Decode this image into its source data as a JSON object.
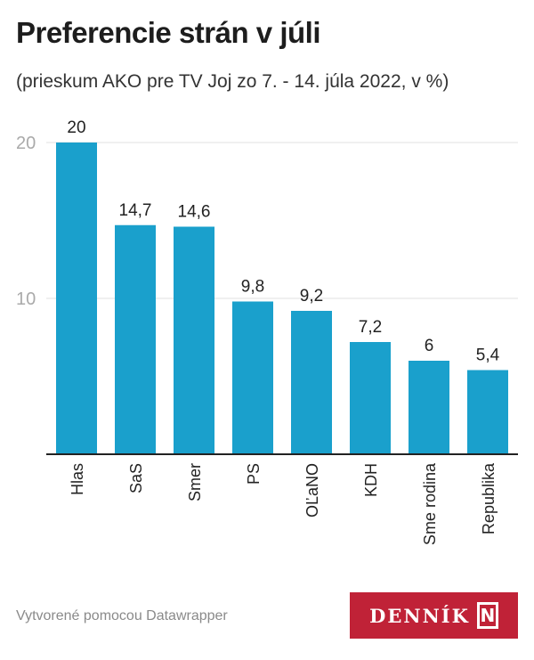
{
  "header": {
    "title": "Preferencie strán v júli",
    "subtitle": "(prieskum AKO pre TV Joj zo 7. - 14. júla 2022, v %)"
  },
  "chart_data": {
    "type": "bar",
    "title": "Preferencie strán v júli",
    "subtitle": "(prieskum AKO pre TV Joj zo 7. - 14. júla 2022, v %)",
    "categories": [
      "Hlas",
      "SaS",
      "Smer",
      "PS",
      "OĽaNO",
      "KDH",
      "Sme rodina",
      "Republika"
    ],
    "values": [
      20,
      14.7,
      14.6,
      9.8,
      9.2,
      7.2,
      6,
      5.4
    ],
    "value_labels": [
      "20",
      "14,7",
      "14,6",
      "9,8",
      "9,2",
      "7,2",
      "6",
      "5,4"
    ],
    "yticks": [
      10,
      20
    ],
    "ylim": [
      0,
      20
    ],
    "xlabel": "",
    "ylabel": "",
    "grid": true,
    "bar_color": "#1aa0cc"
  },
  "footer": {
    "credit": "Vytvorené pomocou Datawrapper",
    "logo_text": "DENNÍK",
    "logo_mark": "N"
  }
}
